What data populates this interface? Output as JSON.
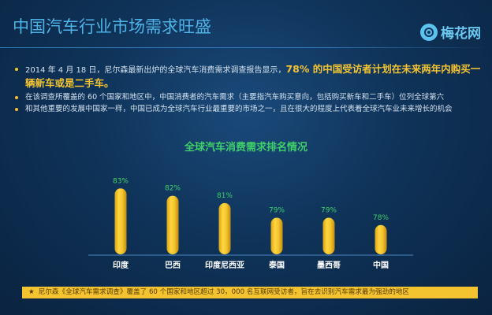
{
  "header": {
    "title": "中国汽车行业市场需求旺盛",
    "logo_text": "梅花网",
    "logo_icon": "meihua-logo-icon"
  },
  "bullets": [
    {
      "before": "2014 年 4 月 18 日，尼尔森最新出炉的全球汽车消费需求调查报告显示，",
      "highlight": "78% 的中国受访者计划在未来两年内购买一辆新车或是二手车。"
    },
    {
      "text": "在该调查所覆盖的 60 个国家和地区中，中国消费者的汽车需求（主要指汽车购买意向，包括购买新车和二手车）位列全球第六"
    },
    {
      "text": "和其他重要的发展中国家一样，中国已成为全球汽车行业最重要的市场之一，且在很大的程度上代表着全球汽车业未来增长的机会"
    }
  ],
  "footer": {
    "star": "★",
    "text": "尼尔森《全球汽车需求调查》覆盖了 60 个国家和地区超过 30，000 名互联网受访者，旨在去识别汽车需求最为强劲的地区"
  },
  "chart_data": {
    "type": "bar",
    "title": "全球汽车消费需求排名情况",
    "categories": [
      "印度",
      "巴西",
      "印度尼西亚",
      "泰国",
      "墨西哥",
      "中国"
    ],
    "values": [
      83,
      82,
      81,
      79,
      79,
      78
    ],
    "value_labels": [
      "83%",
      "82%",
      "81%",
      "79%",
      "79%",
      "78%"
    ],
    "xlabel": "",
    "ylabel": "",
    "ylim": [
      74,
      84
    ],
    "grid": false,
    "legend": "none",
    "colors": {
      "bar": "#f4c430",
      "bar_dark": "#c99a12",
      "value_label": "#3fd06a",
      "category_label": "#ffffff",
      "baseline": "#4b86c2"
    }
  }
}
